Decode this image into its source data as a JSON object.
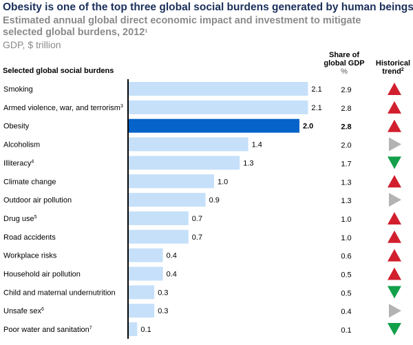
{
  "title": "Obesity is one of the top three global social burdens generated by human beings",
  "subtitle": "Estimated annual global direct economic impact and investment to mitigate selected global burdens, 2012",
  "subtitle_sup": "1",
  "unit": "GDP, $ trillion",
  "chart_data": {
    "type": "bar",
    "orientation": "horizontal",
    "category_header": "Selected global social burdens",
    "share_header": [
      "Share of",
      "global GDP",
      "%"
    ],
    "trend_header": "Historical trend",
    "trend_header_sup": "2",
    "categories": [
      "Smoking",
      "Armed violence, war, and terrorism",
      "Obesity",
      "Alcoholism",
      "Illiteracy",
      "Climate change",
      "Outdoor air pollution",
      "Drug use",
      "Road accidents",
      "Workplace risks",
      "Household air pollution",
      "Child and maternal undernutrition",
      "Unsafe sex",
      "Poor water and sanitation"
    ],
    "category_sups": [
      "",
      "3",
      "",
      "",
      "4",
      "",
      "",
      "5",
      "",
      "",
      "",
      "",
      "6",
      "7"
    ],
    "values": [
      2.1,
      2.1,
      2.0,
      1.4,
      1.3,
      1.0,
      0.9,
      0.7,
      0.7,
      0.4,
      0.4,
      0.3,
      0.3,
      0.1
    ],
    "value_labels": [
      "2.1",
      "2.1",
      "2.0",
      "1.4",
      "1.3",
      "1.0",
      "0.9",
      "0.7",
      "0.7",
      "0.4",
      "0.4",
      "0.3",
      "0.3",
      "0.1"
    ],
    "share_of_gdp": [
      "2.9",
      "2.8",
      "2.8",
      "2.0",
      "1.7",
      "1.3",
      "1.3",
      "1.0",
      "1.0",
      "0.6",
      "0.5",
      "0.5",
      "0.4",
      "0.1"
    ],
    "trend": [
      "up",
      "up",
      "up",
      "flat",
      "down",
      "up",
      "flat",
      "up",
      "up",
      "up",
      "up",
      "down",
      "flat",
      "down"
    ],
    "highlight": "Obesity",
    "colors": {
      "bar": "#c6e0fa",
      "highlight": "#0563c9",
      "up": "#d11f2e",
      "flat": "#b3b3b3",
      "down": "#13a04a",
      "axis": "#000000"
    }
  }
}
